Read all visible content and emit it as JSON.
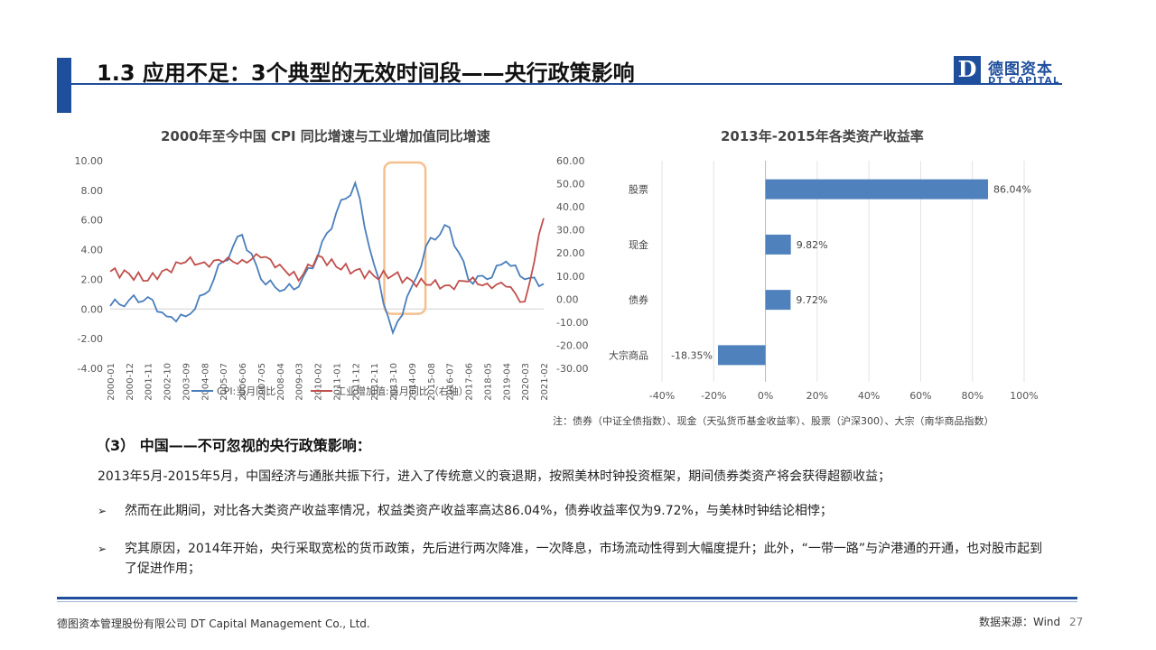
{
  "header": {
    "title": "1.3 应用不足：3个典型的无效时间段——央行政策影响",
    "logo_mark": "D",
    "logo_cn": "德图资本",
    "logo_en": "DT CAPITAL",
    "brand_color": "#1f4e9c"
  },
  "chart_data": [
    {
      "type": "line",
      "title": "2000年至今中国 CPI 同比增速与工业增加值同比增速",
      "x": [
        "2000-01",
        "2000-12",
        "2001-11",
        "2002-10",
        "2003-09",
        "2004-08",
        "2005-07",
        "2006-06",
        "2007-05",
        "2008-04",
        "2009-03",
        "2010-02",
        "2011-01",
        "2011-12",
        "2012-11",
        "2013-10",
        "2014-09",
        "2015-08",
        "2016-07",
        "2017-06",
        "2018-05",
        "2019-04",
        "2020-03",
        "2021-02"
      ],
      "y_left_ticks": [
        "10.00",
        "8.00",
        "6.00",
        "4.00",
        "2.00",
        "0.00",
        "-2.00",
        "-4.00"
      ],
      "y_right_ticks": [
        "60.00",
        "50.00",
        "40.00",
        "30.00",
        "20.00",
        "10.00",
        "0.00",
        "-10.00",
        "-20.00",
        "-30.00"
      ],
      "ylim_left": [
        -4,
        10
      ],
      "ylim_right": [
        -30,
        60
      ],
      "highlight_range": [
        "2013-05",
        "2015-05"
      ],
      "highlight_color": "#f5c08e",
      "series": [
        {
          "name": "CPI:当月同比",
          "axis": "left",
          "color": "#4a7ebb",
          "values": [
            0.2,
            0.6,
            0.8,
            -0.5,
            -0.5,
            1.0,
            3.2,
            5.0,
            2.0,
            1.2,
            1.5,
            3.5,
            6.5,
            8.5,
            3.0,
            -1.6,
            1.5,
            4.8,
            5.5,
            2.0,
            2.0,
            3.2,
            2.0,
            1.7
          ]
        },
        {
          "name": "工业增加值:当月同比（右轴）",
          "axis": "right",
          "color": "#c0504d",
          "values": [
            12.0,
            11.0,
            8.0,
            13.0,
            16.0,
            16.0,
            16.0,
            17.0,
            18.0,
            15.0,
            8.0,
            19.0,
            14.0,
            12.5,
            10.0,
            10.3,
            8.0,
            6.1,
            6.0,
            7.6,
            6.8,
            5.4,
            -1.1,
            35.1
          ]
        }
      ],
      "legend": "bottom"
    },
    {
      "type": "bar",
      "orientation": "horizontal",
      "title": "2013年-2015年各类资产收益率",
      "categories": [
        "股票",
        "现金",
        "债券",
        "大宗商品"
      ],
      "values": [
        86.04,
        9.82,
        9.72,
        -18.35
      ],
      "value_labels": [
        "86.04%",
        "9.82%",
        "9.72%",
        "-18.35%"
      ],
      "xlim": [
        -40,
        100
      ],
      "x_ticks": [
        "-40%",
        "-20%",
        "0%",
        "20%",
        "40%",
        "60%",
        "80%",
        "100%"
      ],
      "bar_color": "#4f81bd",
      "grid": true
    }
  ],
  "note": "注：债券（中证全债指数）、现金（天弘货币基金收益率）、股票（沪深300）、大宗（南华商品指数）",
  "body": {
    "sub_heading": "（3） 中国——不可忽视的央行政策影响：",
    "para1": "2013年5月-2015年5月，中国经济与通胀共振下行，进入了传统意义的衰退期，按照美林时钟投资框架，期间债券类资产将会获得超额收益；",
    "bullet_mark": "➢",
    "bullets": [
      "然而在此期间，对比各大类资产收益率情况，权益类资产收益率高达86.04%，债券收益率仅为9.72%，与美林时钟结论相悖；",
      "究其原因，2014年开始，央行采取宽松的货币政策，先后进行两次降准，一次降息，市场流动性得到大幅度提升；此外，“一带一路”与沪港通的开通，也对股市起到了促进作用；"
    ]
  },
  "footer": {
    "company": "德图资本管理股份有限公司  DT Capital  Management  Co., Ltd.",
    "source": "数据来源：Wind",
    "page_number": "27"
  }
}
